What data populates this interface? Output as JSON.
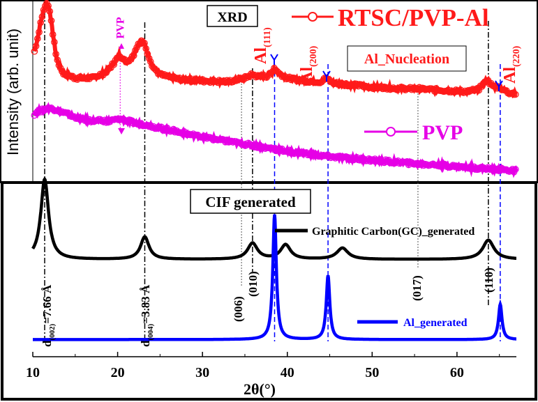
{
  "chart_data": [
    {
      "panel": "measured",
      "type": "line",
      "title": "XRD",
      "ylabel": "Intensity (arb. unit)",
      "xlim": [
        10,
        67
      ],
      "ylim": [
        0,
        1
      ],
      "grid": false,
      "series": [
        {
          "name": "RTSC/PVP-Al",
          "color": "#ff1a1a",
          "x": [
            10.2,
            10.6,
            11.0,
            11.4,
            11.7,
            12.0,
            12.3,
            12.8,
            13.5,
            15,
            17,
            18.5,
            19.5,
            20.2,
            21,
            21.8,
            22.4,
            22.8,
            23.2,
            23.6,
            24.2,
            25,
            27,
            30,
            33,
            35,
            35.8,
            36.5,
            37.5,
            38.2,
            38.5,
            38.9,
            40,
            42,
            44,
            44.6,
            44.8,
            45.1,
            46,
            48,
            50,
            52,
            54,
            55.5,
            57,
            59,
            61,
            62.5,
            63.2,
            63.5,
            63.9,
            64.4,
            65.0,
            65.3,
            66,
            67
          ],
          "y": [
            0.72,
            0.8,
            0.9,
            0.97,
            0.99,
            0.95,
            0.84,
            0.68,
            0.6,
            0.57,
            0.57,
            0.6,
            0.65,
            0.7,
            0.66,
            0.69,
            0.76,
            0.78,
            0.76,
            0.7,
            0.63,
            0.59,
            0.565,
            0.555,
            0.55,
            0.57,
            0.59,
            0.58,
            0.58,
            0.6,
            0.63,
            0.6,
            0.57,
            0.555,
            0.55,
            0.57,
            0.565,
            0.548,
            0.54,
            0.53,
            0.52,
            0.515,
            0.51,
            0.51,
            0.505,
            0.5,
            0.495,
            0.505,
            0.54,
            0.56,
            0.54,
            0.52,
            0.52,
            0.51,
            0.49,
            0.48
          ]
        },
        {
          "name": "PVP",
          "color": "#e600e6",
          "x": [
            10.2,
            11,
            12,
            13,
            15,
            17,
            19,
            20.3,
            22,
            24,
            27,
            30,
            35,
            40,
            45,
            50,
            55,
            60,
            64,
            67
          ],
          "y": [
            0.37,
            0.39,
            0.4,
            0.39,
            0.35,
            0.33,
            0.33,
            0.34,
            0.32,
            0.3,
            0.27,
            0.24,
            0.2,
            0.16,
            0.13,
            0.11,
            0.09,
            0.075,
            0.06,
            0.05
          ]
        }
      ],
      "annotations": [
        "PVP",
        "Al(111)",
        "Al(200)",
        "Al(220)",
        "Al_Nucleation"
      ]
    },
    {
      "panel": "generated",
      "type": "line",
      "title": "CIF generated",
      "xlabel": "2θ(°)",
      "xlim": [
        10,
        67
      ],
      "ylim": [
        0,
        1
      ],
      "xticks": [
        10,
        20,
        30,
        40,
        50,
        60
      ],
      "grid": false,
      "series": [
        {
          "name": "Graphitic Carbon(GC)_generated",
          "color": "#000000",
          "peaks": [
            {
              "x": 11.4,
              "h": 0.5,
              "w": 0.55
            },
            {
              "x": 23.2,
              "h": 0.14,
              "w": 0.6
            },
            {
              "x": 35.9,
              "h": 0.1,
              "w": 0.7
            },
            {
              "x": 39.8,
              "h": 0.09,
              "w": 0.7
            },
            {
              "x": 46.5,
              "h": 0.07,
              "w": 0.8
            },
            {
              "x": 63.7,
              "h": 0.12,
              "w": 0.8
            }
          ],
          "baseline": 0.52
        },
        {
          "name": "Al_generated",
          "color": "#0000ff",
          "peaks": [
            {
              "x": 38.5,
              "h": 0.78,
              "w": 0.25
            },
            {
              "x": 44.8,
              "h": 0.4,
              "w": 0.25
            },
            {
              "x": 65.1,
              "h": 0.22,
              "w": 0.25
            }
          ],
          "baseline": 0.02
        }
      ],
      "annotations": [
        "d(002)=7.66 Å",
        "d(004)=3.83 Å",
        "(006)",
        "(010)",
        "(017)",
        "(110)"
      ]
    }
  ],
  "labels": {
    "top_title": "XRD",
    "legend_main": "RTSC/PVP-Al",
    "legend_pvp": "PVP",
    "nucleation": "Al_Nucleation",
    "pvp_peak": "PVP",
    "y_axis": "Intensity (arb. unit)",
    "bottom_title": "CIF generated",
    "gc_legend": "Graphitic Carbon(GC)_generated",
    "al_legend": "Al_generated",
    "x_axis": "2θ(°)",
    "al111_base": "Al",
    "al111_sub": "(111)",
    "al200_base": "Al",
    "al200_sub": "(200)",
    "al220_base": "Al",
    "al220_sub": "(220)",
    "d002_pre": "d",
    "d002_sub": "(002)",
    "d002_val": "=7.66 Å",
    "d004_pre": "d",
    "d004_sub": "(004)",
    "d004_val": "=3.83 Å",
    "p006": "(006)",
    "p010": "(010)",
    "p017": "(017)",
    "p110": "(110)",
    "ticks": [
      "10",
      "20",
      "30",
      "40",
      "50",
      "60"
    ]
  }
}
